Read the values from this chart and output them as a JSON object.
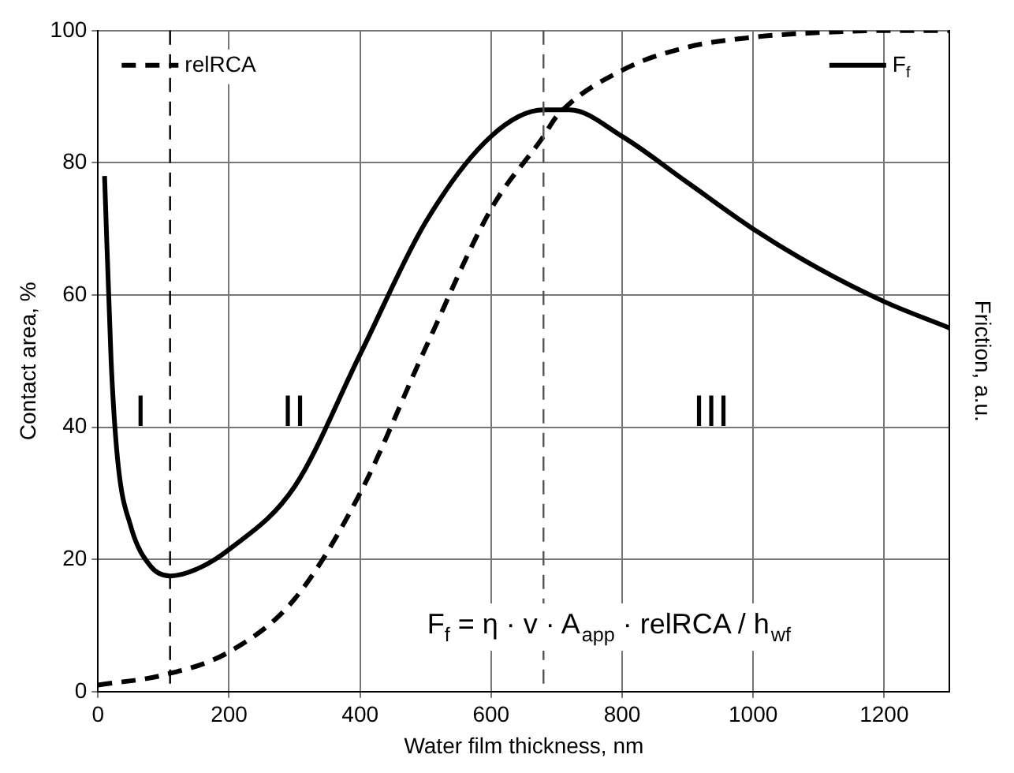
{
  "chart_data": {
    "type": "line",
    "xlabel": "Water film thickness, nm",
    "ylabel": "Contact area, %",
    "y2label": "Friction, a.u.",
    "xlim": [
      0,
      1300
    ],
    "xticks": [
      0,
      200,
      400,
      600,
      800,
      1000,
      1200
    ],
    "ylim": [
      0,
      100
    ],
    "yticks": [
      0,
      20,
      40,
      60,
      80,
      100
    ],
    "grid": true,
    "legend": "top",
    "marker": "none",
    "series": [
      {
        "name": "relRCA",
        "color": "#000000",
        "line_style": "dashed",
        "x": [
          0,
          100,
          200,
          300,
          400,
          500,
          600,
          680,
          700,
          800,
          900,
          1000,
          1100,
          1200,
          1300
        ],
        "values": [
          1,
          2.5,
          6,
          14,
          30,
          52,
          73,
          84,
          87,
          94,
          97.5,
          99,
          99.7,
          100,
          100
        ]
      },
      {
        "name": "F$_{f}$",
        "color": "#000000",
        "line_style": "solid",
        "x": [
          10,
          20,
          30,
          50,
          80,
          110,
          150,
          200,
          300,
          400,
          500,
          600,
          680,
          720,
          800,
          900,
          1000,
          1100,
          1200,
          1300
        ],
        "values": [
          78,
          50,
          35,
          25,
          19,
          17.5,
          18.5,
          21.5,
          31,
          51,
          71,
          84,
          88,
          88,
          84,
          77,
          70,
          64,
          59,
          55
        ]
      }
    ],
    "ref_lines": [
      {
        "axis": "x",
        "value": 110,
        "color": "#000000",
        "line_style": "dashed"
      },
      {
        "axis": "x",
        "value": 680,
        "color": "#555555",
        "line_style": "dashed"
      }
    ],
    "annotations": [
      "I",
      "II",
      "III",
      "F$_{f}$ = η · v · A$_{app}$ · relRCA / h$_{wf}$"
    ]
  }
}
